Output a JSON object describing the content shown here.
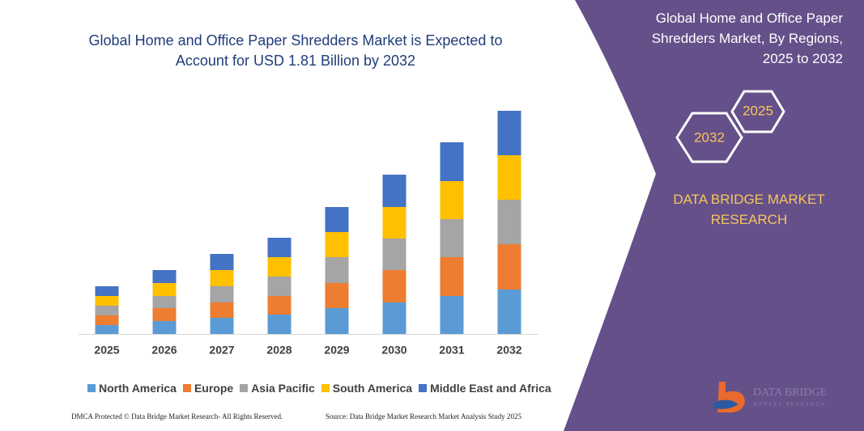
{
  "chart_data": {
    "type": "stacked-bar",
    "title": "Global Home and Office Paper Shredders Market is Expected to Account for USD 1.81 Billion by 2032",
    "categories": [
      "2025",
      "2026",
      "2027",
      "2028",
      "2029",
      "2030",
      "2031",
      "2032"
    ],
    "series": [
      {
        "name": "North America",
        "color": "#5b9bd5",
        "values": [
          11,
          16,
          20,
          24,
          32,
          39,
          47,
          55
        ]
      },
      {
        "name": "Europe",
        "color": "#ed7d31",
        "values": [
          12,
          16,
          19,
          23,
          31,
          40,
          48,
          56
        ]
      },
      {
        "name": "Asia Pacific",
        "color": "#a5a5a5",
        "values": [
          12,
          15,
          20,
          24,
          32,
          39,
          47,
          55
        ]
      },
      {
        "name": "South America",
        "color": "#ffc000",
        "values": [
          12,
          16,
          20,
          24,
          31,
          39,
          47,
          55
        ]
      },
      {
        "name": "Middle East and Africa",
        "color": "#4472c4",
        "values": [
          12,
          16,
          20,
          24,
          31,
          40,
          48,
          55
        ]
      }
    ]
  },
  "panel": {
    "title": "Global Home and Office Paper Shredders Market, By Regions, 2025 to 2032",
    "hexagons": [
      "2032",
      "2025"
    ],
    "brand": "DATA BRIDGE MARKET RESEARCH"
  },
  "logo": {
    "name": "DATA BRIDGE",
    "tagline": "MARKET RESEARCH"
  },
  "footer": {
    "left": "DMCA Protected © Data Bridge Market Research- All Rights Reserved.",
    "right": "Source: Data Bridge Market Research Market Analysis Study 2025"
  }
}
